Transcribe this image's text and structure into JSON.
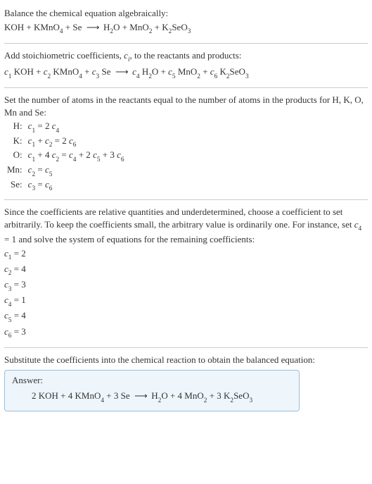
{
  "intro": {
    "title": "Balance the chemical equation algebraically:",
    "eq_left": [
      "KOH",
      "KMnO",
      "Se"
    ],
    "eq_left_sub": [
      "",
      "4",
      ""
    ],
    "eq_right": [
      "H",
      "O",
      "MnO",
      "K",
      "SeO"
    ],
    "eq_right_sub": [
      "2",
      "",
      "2",
      "2",
      "3"
    ]
  },
  "step_coeff": {
    "text_a": "Add stoichiometric coefficients, ",
    "ci": "c",
    "ci_sub": "i",
    "text_b": ", to the reactants and products:"
  },
  "step_atoms": {
    "text": "Set the number of atoms in the reactants equal to the number of atoms in the products for H, K, O, Mn and Se:"
  },
  "eqns": {
    "rows": [
      {
        "label": "H:",
        "lhs": "c1",
        "rhs": "2 c4"
      },
      {
        "label": "K:",
        "lhs": "c1 + c2",
        "rhs": "2 c6"
      },
      {
        "label": "O:",
        "lhs": "c1 + 4 c2",
        "rhs": "c4 + 2 c5 + 3 c6"
      },
      {
        "label": "Mn:",
        "lhs": "c2",
        "rhs": "c5"
      },
      {
        "label": "Se:",
        "lhs": "c3",
        "rhs": "c6"
      }
    ]
  },
  "step_under": {
    "text": "Since the coefficients are relative quantities and underdetermined, choose a coefficient to set arbitrarily. To keep the coefficients small, the arbitrary value is ordinarily one. For instance, set c4 = 1 and solve the system of equations for the remaining coefficients:"
  },
  "coeffs": [
    {
      "c": "c1",
      "v": "2"
    },
    {
      "c": "c2",
      "v": "4"
    },
    {
      "c": "c3",
      "v": "3"
    },
    {
      "c": "c4",
      "v": "1"
    },
    {
      "c": "c5",
      "v": "4"
    },
    {
      "c": "c6",
      "v": "3"
    }
  ],
  "step_sub": {
    "text": "Substitute the coefficients into the chemical reaction to obtain the balanced equation:"
  },
  "answer": {
    "hdr": "Answer:",
    "eq": "2 KOH + 4 KMnO4 + 3 Se  ⟶  H2O + 4 MnO2 + 3 K2SeO3"
  },
  "style": {
    "arrow": "⟶"
  }
}
